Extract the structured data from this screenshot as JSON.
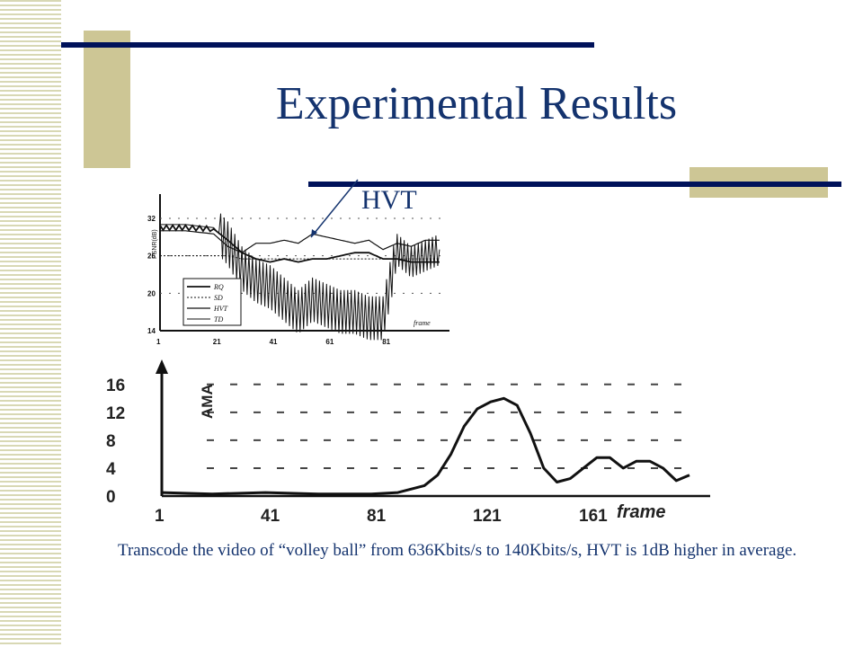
{
  "slide": {
    "title": "Experimental Results",
    "callout": "HVT",
    "caption": "Transcode the video of “volley ball” from 636Kbits/s to 140Kbits/s, HVT is 1dB higher in average.",
    "colors": {
      "title": "#14336e",
      "navy_bar": "#00125a",
      "tan_block": "#cdc695",
      "stripe": "#d8d8b4"
    }
  },
  "chart_data": [
    {
      "type": "line",
      "ylabel": "PSNR(dB)",
      "xlabel": "frame",
      "x_ticks": [
        "1",
        "21",
        "41",
        "61",
        "81"
      ],
      "y_ticks": [
        "32",
        "26",
        "20",
        "14"
      ],
      "xlim": [
        1,
        101
      ],
      "ylim": [
        14,
        33
      ],
      "grid": true,
      "legend_position": "bottom-left",
      "series": [
        {
          "name": "RQ",
          "x": [
            1,
            10,
            20,
            25,
            30,
            35,
            40,
            45,
            50,
            55,
            60,
            65,
            70,
            75,
            80,
            85,
            90,
            95,
            100
          ],
          "y": [
            30.5,
            30.5,
            30.3,
            28.5,
            26.5,
            25.5,
            25,
            25.5,
            25,
            25.5,
            25.5,
            26,
            26.5,
            26.5,
            25.5,
            25.5,
            25,
            25,
            25
          ]
        },
        {
          "name": "SD",
          "x": [
            1,
            10,
            20,
            25,
            30,
            35,
            40,
            45,
            50,
            55,
            60,
            65,
            70,
            75,
            80,
            85,
            90,
            95,
            100
          ],
          "y": [
            26,
            26,
            26,
            26,
            25.5,
            25.5,
            25.5,
            25.5,
            25.5,
            25.5,
            25.5,
            25.5,
            25.5,
            25.5,
            25.5,
            25.5,
            25.5,
            25.5,
            25.5
          ]
        },
        {
          "name": "HVT",
          "x": [
            1,
            10,
            20,
            25,
            30,
            35,
            40,
            45,
            50,
            55,
            60,
            65,
            70,
            75,
            80,
            85,
            90,
            95,
            100
          ],
          "y": [
            30,
            30,
            29.5,
            27.5,
            26.5,
            28,
            28,
            28.5,
            28,
            29.5,
            29,
            28.5,
            28,
            28.5,
            27,
            28,
            27.5,
            28.5,
            28.5
          ]
        },
        {
          "name": "TD",
          "x": [
            1,
            10,
            20,
            25,
            30,
            35,
            40,
            45,
            50,
            55,
            60,
            65,
            70,
            75,
            80,
            85,
            90,
            95,
            100
          ],
          "y": [
            31,
            31,
            30.5,
            28,
            24,
            22,
            21,
            19,
            17,
            19,
            18,
            17,
            17,
            16,
            16,
            27,
            25,
            26,
            27
          ]
        }
      ]
    },
    {
      "type": "line",
      "ylabel": "AMA",
      "xlabel": "frame",
      "x_ticks": [
        "1",
        "41",
        "81",
        "121",
        "161"
      ],
      "y_ticks": [
        "16",
        "12",
        "8",
        "4",
        "0"
      ],
      "xlim": [
        1,
        201
      ],
      "ylim": [
        0,
        17
      ],
      "grid": true,
      "series": [
        {
          "name": "",
          "x": [
            1,
            20,
            40,
            60,
            80,
            90,
            100,
            105,
            110,
            115,
            120,
            125,
            130,
            135,
            140,
            145,
            150,
            155,
            160,
            165,
            170,
            175,
            180,
            185,
            190,
            195,
            200
          ],
          "y": [
            0.5,
            0.3,
            0.5,
            0.3,
            0.3,
            0.5,
            1.5,
            3,
            6,
            10,
            12.5,
            13.5,
            14,
            13,
            9,
            4,
            2,
            2.5,
            4,
            5.5,
            5.5,
            4,
            5,
            5,
            4,
            2.2,
            3
          ]
        }
      ]
    }
  ]
}
